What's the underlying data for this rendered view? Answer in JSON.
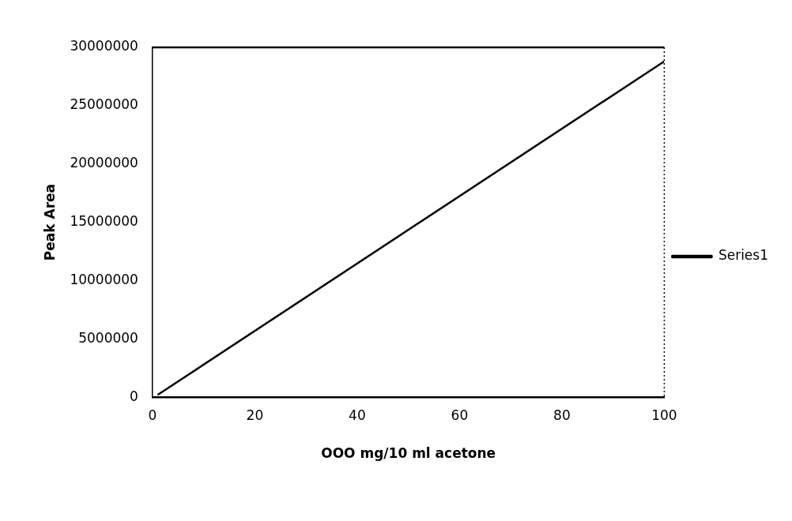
{
  "chart_data": {
    "type": "line",
    "xlabel": "OOO mg/10 ml acetone",
    "ylabel": "Peak Area",
    "x": [
      1,
      100
    ],
    "series": [
      {
        "name": "Series1",
        "color": "#000000",
        "values": [
          200000,
          28800000
        ]
      }
    ],
    "xlim": [
      0,
      100
    ],
    "xticks": [
      0,
      20,
      40,
      60,
      80,
      100
    ],
    "ylim": [
      0,
      30000000
    ],
    "yticks": [
      0,
      5000000,
      10000000,
      15000000,
      20000000,
      25000000,
      30000000
    ],
    "grid": false,
    "legend": "right",
    "marker": "none",
    "line_style": "solid"
  }
}
